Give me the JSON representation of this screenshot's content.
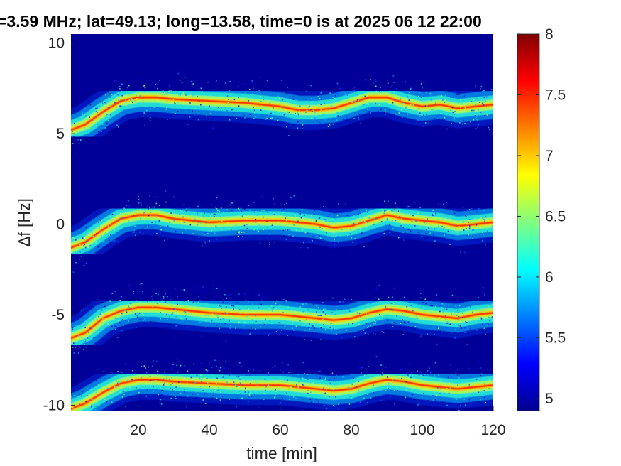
{
  "chart_data": {
    "type": "heatmap",
    "title": "=3.59 MHz;  lat=49.13; long=13.58, time=0 is at 2025 06 12 22:00",
    "xlabel": "time [min]",
    "ylabel": "∆f [Hz]",
    "xlim": [
      1,
      120
    ],
    "ylim": [
      -10.3,
      10.5
    ],
    "x_ticks": [
      "20",
      "40",
      "60",
      "80",
      "100",
      "120"
    ],
    "y_ticks": [
      "10",
      "5",
      "0",
      "-5",
      "-10"
    ],
    "colorbar": {
      "colormap": "jet",
      "clim": [
        4.9,
        8
      ],
      "ticks": [
        "8",
        "7.5",
        "7",
        "6.5",
        "6",
        "5.5",
        "5"
      ]
    },
    "background_level": 5.0,
    "traces": [
      {
        "name": "",
        "x": [
          1,
          5,
          10,
          15,
          20,
          25,
          30,
          40,
          50,
          60,
          65,
          70,
          75,
          80,
          85,
          90,
          95,
          100,
          105,
          110,
          115,
          120
        ],
        "y": [
          5.2,
          5.5,
          6.2,
          6.8,
          7.0,
          7.0,
          6.9,
          6.8,
          6.7,
          6.5,
          6.3,
          6.3,
          6.4,
          6.7,
          7.0,
          7.0,
          6.7,
          6.5,
          6.6,
          6.4,
          6.5,
          6.6
        ]
      },
      {
        "name": "",
        "x": [
          1,
          5,
          10,
          15,
          20,
          25,
          30,
          40,
          50,
          60,
          65,
          70,
          75,
          80,
          85,
          90,
          95,
          100,
          105,
          110,
          115,
          120
        ],
        "y": [
          -1.3,
          -1.0,
          -0.3,
          0.3,
          0.5,
          0.5,
          0.3,
          0.1,
          0.2,
          0.2,
          0.1,
          0.0,
          -0.2,
          -0.1,
          0.2,
          0.5,
          0.3,
          0.2,
          0.1,
          -0.1,
          0.0,
          0.1
        ]
      },
      {
        "name": "",
        "x": [
          1,
          5,
          10,
          15,
          20,
          25,
          30,
          40,
          50,
          60,
          65,
          70,
          75,
          80,
          85,
          90,
          95,
          100,
          105,
          110,
          115,
          120
        ],
        "y": [
          -6.3,
          -6.0,
          -5.2,
          -4.8,
          -4.6,
          -4.6,
          -4.7,
          -4.9,
          -5.0,
          -5.0,
          -5.1,
          -5.2,
          -5.3,
          -5.2,
          -4.9,
          -4.7,
          -4.8,
          -5.0,
          -5.1,
          -5.2,
          -5.0,
          -4.9
        ]
      },
      {
        "name": "",
        "x": [
          1,
          5,
          10,
          15,
          20,
          25,
          30,
          40,
          50,
          60,
          65,
          70,
          75,
          80,
          85,
          90,
          95,
          100,
          105,
          110,
          115,
          120
        ],
        "y": [
          -10.2,
          -9.9,
          -9.3,
          -8.8,
          -8.6,
          -8.6,
          -8.7,
          -8.8,
          -8.9,
          -8.9,
          -9.0,
          -9.1,
          -9.2,
          -9.1,
          -8.8,
          -8.6,
          -8.7,
          -8.9,
          -9.0,
          -9.1,
          -9.0,
          -8.9
        ]
      }
    ]
  }
}
